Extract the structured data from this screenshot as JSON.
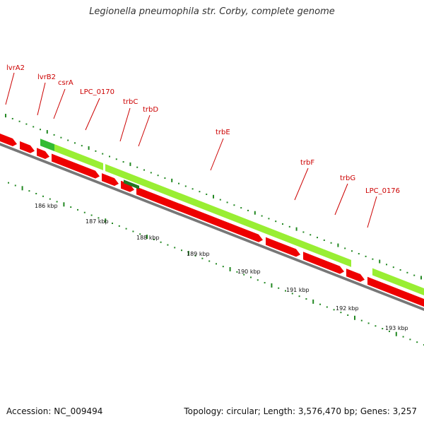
{
  "title": "Legionella pneumophila str. Corby, complete genome",
  "footer": {
    "accession": "Accession: NC_009494",
    "summary": "Topology: circular; Length: 3,576,470 bp; Genes: 3,257"
  },
  "colors": {
    "forward_cds": "#99ee33",
    "reverse_cds": "#ee0000",
    "highlight_cds": "#33bb33",
    "backbone": "#777777",
    "tick": "#228822",
    "label": "#cc0000"
  },
  "scale": {
    "tick_labels": [
      "186 kbp",
      "187 kbp",
      "188 kbp",
      "189 kbp",
      "190 kbp",
      "191 kbp",
      "192 kbp",
      "193 kbp"
    ]
  },
  "gene_labels": [
    "lvrA2",
    "lvrB2",
    "csrA",
    "LPC_0170",
    "trbC",
    "trbD",
    "trbE",
    "trbF",
    "trbG",
    "LPC_0176"
  ]
}
